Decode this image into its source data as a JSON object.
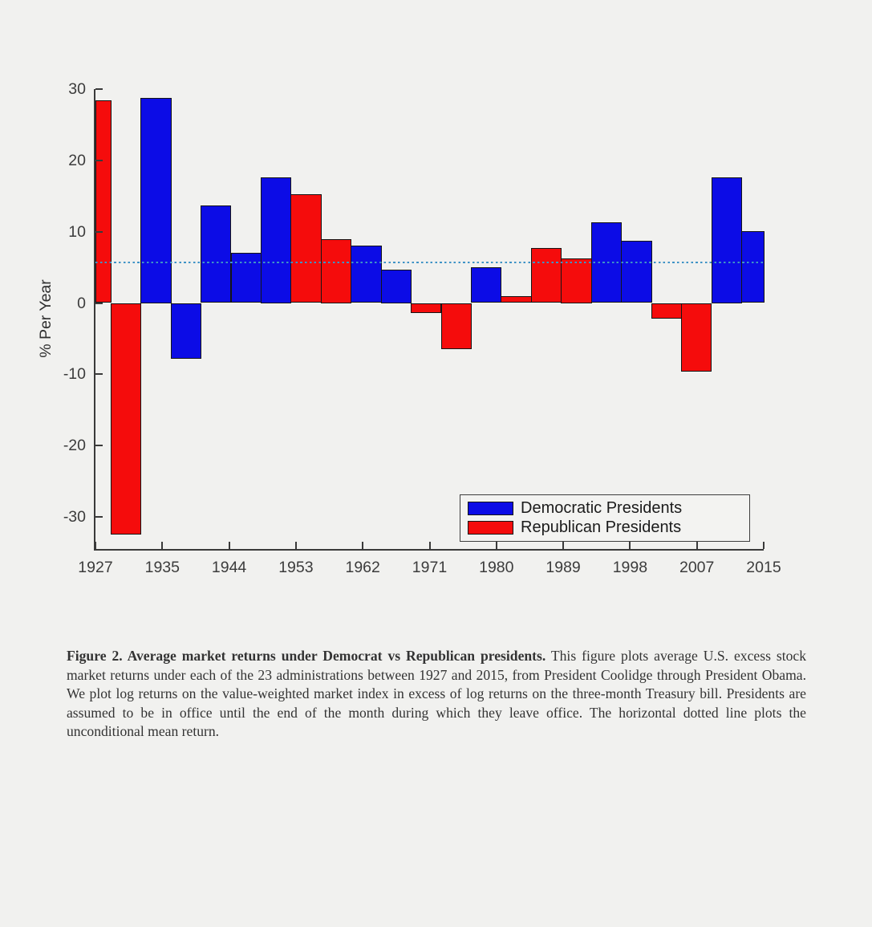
{
  "chart_data": {
    "type": "bar",
    "title": "",
    "xlabel": "",
    "ylabel": "% Per Year",
    "ylim": [
      -34.5,
      30
    ],
    "xlim": [
      1927,
      2016
    ],
    "yticks": [
      30,
      20,
      10,
      0,
      -10,
      -20,
      -30
    ],
    "xticks": [
      "1927",
      "1935",
      "1944",
      "1953",
      "1962",
      "1971",
      "1980",
      "1989",
      "1998",
      "2007",
      "2015"
    ],
    "grid": false,
    "legend_position": "lower-right-inside",
    "colors": {
      "Democratic": "#0c0ce6",
      "Republican": "#f50c0c",
      "mean_line": "#3f93c6",
      "axis": "#3a3a3a",
      "background": "#f1f1ef"
    },
    "legend": [
      {
        "label": "Democratic Presidents",
        "party": "Democratic"
      },
      {
        "label": "Republican Presidents",
        "party": "Republican"
      }
    ],
    "mean_line": {
      "value": 5.7,
      "style": "dotted",
      "meaning": "unconditional mean return"
    },
    "bars": [
      {
        "start": 1927,
        "end": 1929,
        "party": "Republican",
        "value": 28.4
      },
      {
        "start": 1929,
        "end": 1933,
        "party": "Republican",
        "value": -32.5
      },
      {
        "start": 1933,
        "end": 1937,
        "party": "Democratic",
        "value": 28.8
      },
      {
        "start": 1937,
        "end": 1941,
        "party": "Democratic",
        "value": -7.8
      },
      {
        "start": 1941,
        "end": 1945,
        "party": "Democratic",
        "value": 13.7
      },
      {
        "start": 1945,
        "end": 1949,
        "party": "Democratic",
        "value": 7.0
      },
      {
        "start": 1949,
        "end": 1953,
        "party": "Democratic",
        "value": 17.6
      },
      {
        "start": 1953,
        "end": 1957,
        "party": "Republican",
        "value": 15.3
      },
      {
        "start": 1957,
        "end": 1961,
        "party": "Republican",
        "value": 9.0
      },
      {
        "start": 1961,
        "end": 1965,
        "party": "Democratic",
        "value": 8.0
      },
      {
        "start": 1965,
        "end": 1969,
        "party": "Democratic",
        "value": 4.7
      },
      {
        "start": 1969,
        "end": 1973,
        "party": "Republican",
        "value": -1.4
      },
      {
        "start": 1973,
        "end": 1977,
        "party": "Republican",
        "value": -6.5
      },
      {
        "start": 1977,
        "end": 1981,
        "party": "Democratic",
        "value": 5.0
      },
      {
        "start": 1981,
        "end": 1985,
        "party": "Republican",
        "value": 1.0
      },
      {
        "start": 1985,
        "end": 1989,
        "party": "Republican",
        "value": 7.7
      },
      {
        "start": 1989,
        "end": 1993,
        "party": "Republican",
        "value": 6.3
      },
      {
        "start": 1993,
        "end": 1997,
        "party": "Democratic",
        "value": 11.3
      },
      {
        "start": 1997,
        "end": 2001,
        "party": "Democratic",
        "value": 8.7
      },
      {
        "start": 2001,
        "end": 2005,
        "party": "Republican",
        "value": -2.2
      },
      {
        "start": 2005,
        "end": 2009,
        "party": "Republican",
        "value": -9.6
      },
      {
        "start": 2009,
        "end": 2013,
        "party": "Democratic",
        "value": 17.6
      },
      {
        "start": 2013,
        "end": 2016,
        "party": "Democratic",
        "value": 10.1
      }
    ]
  },
  "caption": {
    "label_bold": "Figure 2.  Average market returns under Democrat vs Republican presidents.",
    "body": " This figure plots average U.S. excess stock market returns under each of the 23 administrations between 1927 and 2015, from President Coolidge through President Obama. We plot log returns on the value-weighted market index in excess of log returns on the three-month Treasury bill. Presidents are assumed to be in office until the end of the month during which they leave office. The horizontal dotted line plots the unconditional mean return."
  }
}
